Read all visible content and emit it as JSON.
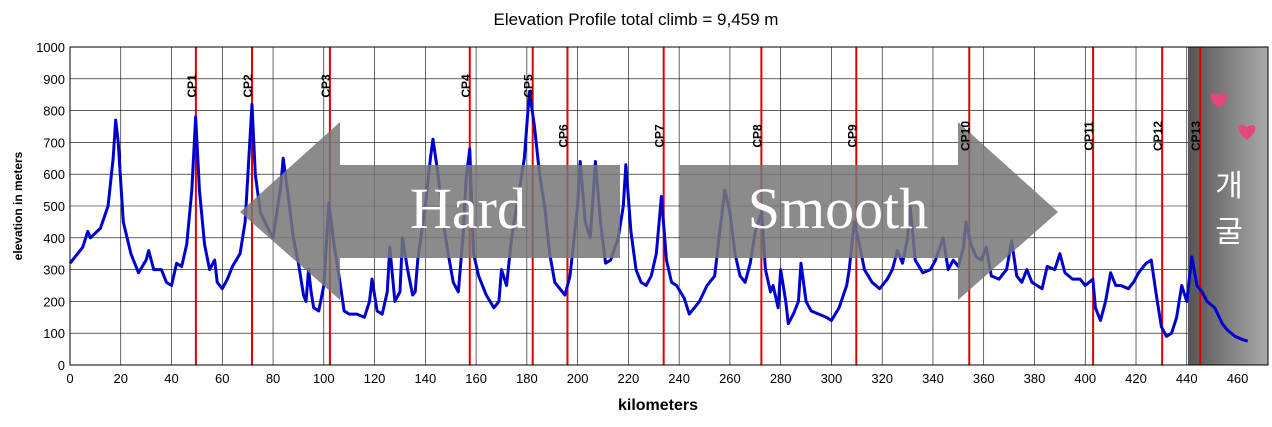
{
  "chart_data": {
    "type": "line",
    "title": "Elevation Profile   total climb = 9,459 m",
    "xlabel": "kilometers",
    "ylabel": "elevation in meters",
    "x": [
      0,
      5,
      7,
      8,
      12,
      15,
      17,
      18,
      19,
      21,
      24,
      27,
      30,
      31,
      33,
      36,
      38,
      40,
      42,
      44,
      46,
      48,
      49.5,
      51,
      53,
      55,
      57,
      58,
      60,
      62,
      64,
      67,
      69,
      71.7,
      73,
      75,
      78,
      80,
      83,
      84,
      86,
      88,
      90,
      92,
      93,
      94,
      95,
      96,
      98,
      100,
      102,
      104,
      106,
      108,
      110,
      113,
      116,
      118,
      119,
      121,
      123,
      125,
      126,
      128,
      130,
      131,
      133,
      135,
      136,
      137,
      140,
      142,
      143,
      145,
      147,
      149,
      151,
      153,
      155,
      156,
      157.5,
      159,
      161,
      164,
      167,
      169,
      170,
      172,
      174,
      176,
      179,
      181,
      183,
      185,
      187,
      189,
      191,
      193,
      195,
      197,
      200,
      201,
      203,
      205,
      207,
      209,
      211,
      213,
      216,
      218,
      219,
      221,
      223,
      225,
      227,
      229,
      231,
      233,
      235,
      237,
      239,
      242,
      244,
      246,
      248,
      251,
      254,
      256,
      258,
      260,
      262,
      264,
      266,
      268,
      270,
      272.5,
      274,
      276,
      277,
      279,
      280,
      282,
      283,
      285,
      287,
      288,
      290,
      292,
      295,
      298,
      300,
      303,
      306,
      307,
      309,
      311,
      313,
      316,
      319,
      322,
      324,
      326,
      328,
      330,
      331,
      333,
      336,
      339,
      341,
      344,
      346,
      348,
      350,
      352,
      353,
      355,
      357,
      359,
      361,
      363,
      366,
      369,
      371,
      373,
      375,
      377,
      379,
      381,
      383,
      385,
      388,
      390,
      392,
      395,
      398,
      400,
      403,
      404,
      406,
      408,
      410,
      412,
      414,
      417,
      419,
      421,
      424,
      426,
      428,
      430,
      432,
      434,
      436,
      438,
      440,
      442,
      444,
      446,
      448,
      451,
      454,
      456,
      459,
      462,
      464
    ],
    "series": [
      {
        "name": "elevation",
        "color": "#0000cc",
        "values": [
          320,
          370,
          420,
          400,
          430,
          500,
          650,
          770,
          700,
          450,
          350,
          290,
          330,
          360,
          300,
          300,
          260,
          250,
          320,
          310,
          380,
          550,
          780,
          550,
          380,
          300,
          330,
          260,
          240,
          270,
          310,
          350,
          450,
          820,
          600,
          480,
          430,
          400,
          560,
          650,
          530,
          400,
          320,
          220,
          200,
          300,
          230,
          180,
          170,
          250,
          510,
          380,
          280,
          170,
          160,
          160,
          150,
          200,
          270,
          170,
          160,
          230,
          370,
          200,
          230,
          400,
          300,
          220,
          230,
          330,
          500,
          650,
          710,
          600,
          450,
          350,
          260,
          230,
          420,
          580,
          680,
          350,
          280,
          220,
          180,
          200,
          300,
          250,
          400,
          500,
          650,
          860,
          750,
          600,
          500,
          350,
          260,
          240,
          220,
          280,
          500,
          640,
          450,
          400,
          640,
          450,
          320,
          330,
          400,
          500,
          630,
          420,
          300,
          260,
          250,
          280,
          350,
          530,
          330,
          260,
          250,
          210,
          160,
          180,
          200,
          250,
          280,
          420,
          550,
          480,
          350,
          280,
          260,
          320,
          420,
          480,
          300,
          230,
          250,
          180,
          300,
          200,
          130,
          160,
          200,
          320,
          200,
          170,
          160,
          150,
          140,
          180,
          250,
          300,
          450,
          380,
          300,
          260,
          240,
          270,
          300,
          360,
          320,
          400,
          500,
          330,
          290,
          300,
          330,
          400,
          300,
          330,
          310,
          370,
          450,
          380,
          340,
          330,
          370,
          280,
          270,
          300,
          390,
          280,
          260,
          300,
          260,
          250,
          240,
          310,
          300,
          350,
          290,
          270,
          270,
          250,
          270,
          180,
          140,
          200,
          290,
          250,
          250,
          240,
          260,
          290,
          320,
          330,
          220,
          120,
          90,
          100,
          150,
          250,
          200,
          340,
          250,
          230,
          200,
          180,
          130,
          110,
          90,
          80,
          75
        ]
      }
    ],
    "checkpoints": [
      {
        "label": "CP1",
        "km": 49.6
      },
      {
        "label": "CP2",
        "km": 71.7
      },
      {
        "label": "CP3",
        "km": 102.4
      },
      {
        "label": "CP4",
        "km": 157.5
      },
      {
        "label": "CP5",
        "km": 182.3
      },
      {
        "label": "CP6",
        "km": 196
      },
      {
        "label": "CP7",
        "km": 233.9
      },
      {
        "label": "CP8",
        "km": 272.4
      },
      {
        "label": "CP9",
        "km": 309.8
      },
      {
        "label": "CP10",
        "km": 354.3
      },
      {
        "label": "CP11",
        "km": 403.1
      },
      {
        "label": "CP12",
        "km": 430.3
      },
      {
        "label": "CP13",
        "km": 445.3
      }
    ],
    "annotations": [
      "Hard",
      "Smooth",
      "개",
      "굴"
    ],
    "xlim": [
      0,
      472
    ],
    "ylim": [
      0,
      1000
    ],
    "xticks": [
      0,
      20,
      40,
      60,
      80,
      100,
      120,
      140,
      160,
      180,
      200,
      220,
      240,
      260,
      280,
      300,
      320,
      340,
      360,
      380,
      400,
      420,
      440,
      460
    ],
    "yticks": [
      0,
      100,
      200,
      300,
      400,
      500,
      600,
      700,
      800,
      900,
      1000
    ],
    "grid": true
  }
}
